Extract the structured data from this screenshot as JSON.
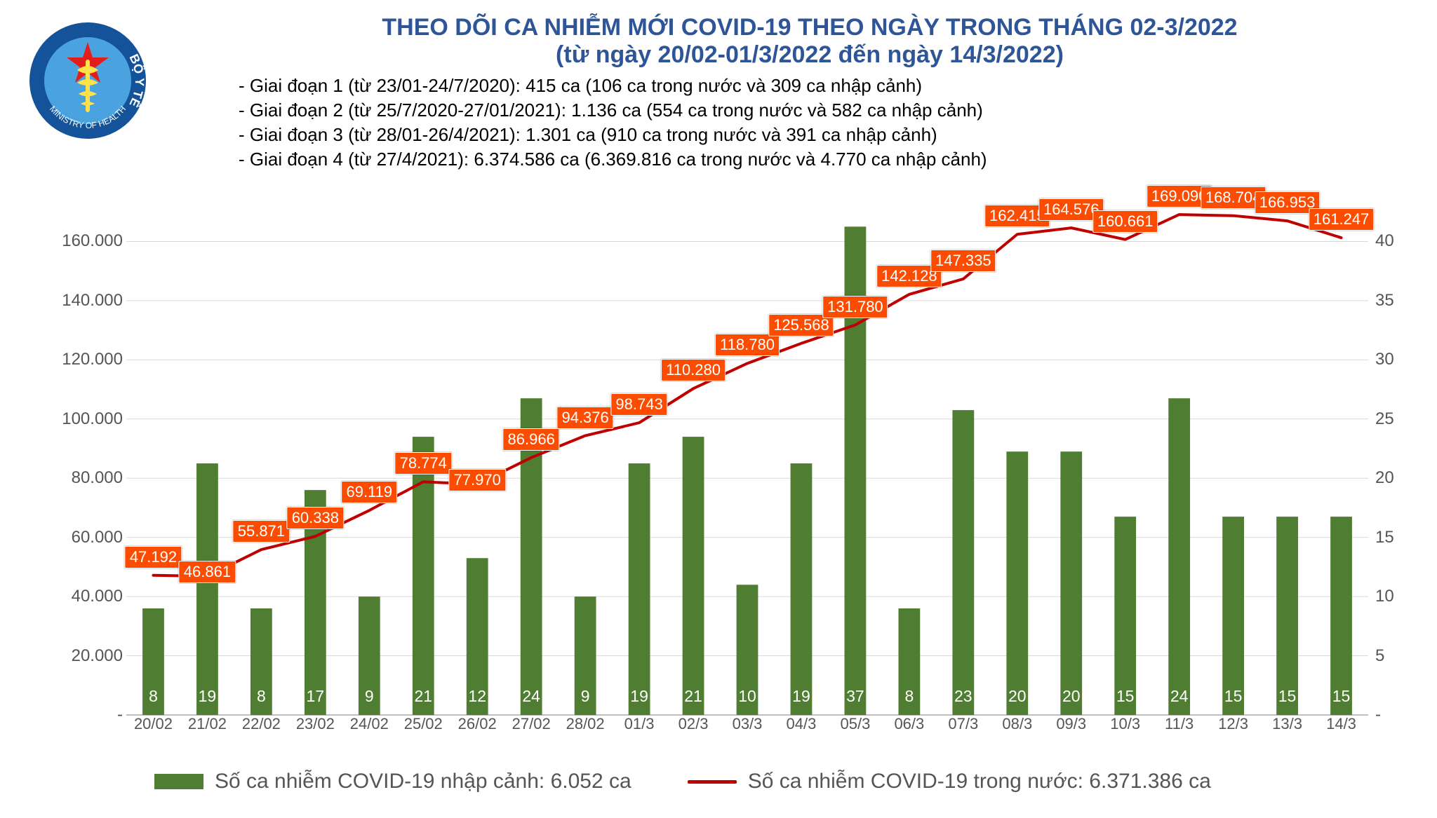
{
  "title": {
    "line1": "THEO DÕI CA NHIỄM MỚI COVID-19 THEO NGÀY TRONG THÁNG 02-3/2022",
    "line2": "(từ ngày 20/02-01/3/2022 đến ngày 14/3/2022)",
    "color": "#2e5597",
    "fontsize": 34,
    "font_family": "Arial"
  },
  "logo": {
    "outer_text_top": "BỘ Y TẾ",
    "outer_text_bottom": "MINISTRY OF HEALTH",
    "ring_color": "#14529a",
    "star_color": "#e31d1a",
    "staff_color": "#ffe24a",
    "bg_color": "#4aa3df"
  },
  "periods": [
    "- Giai đoạn 1 (từ 23/01-24/7/2020): 415 ca (106 ca trong nước và 309 ca nhập cảnh)",
    "- Giai đoạn 2 (từ 25/7/2020-27/01/2021): 1.136 ca (554 ca trong nước và 582 ca nhập cảnh)",
    "- Giai đoạn 3 (từ 28/01-26/4/2021): 1.301 ca (910 ca trong nước và 391 ca nhập cảnh)",
    "- Giai đoạn 4 (từ 27/4/2021): 6.374.586 ca (6.369.816 ca trong nước và 4.770 ca nhập cảnh)"
  ],
  "period_style": {
    "fontsize": 26,
    "color": "#000000",
    "font_family": "Arial"
  },
  "chart": {
    "type": "combo_bar_line_dual_axis",
    "plot_background": "#ffffff",
    "grid_color": "#d9d9d9",
    "axis_line_color": "#bfbfbf",
    "axis_label_color": "#555555",
    "axis_fontsize": 22,
    "bar_color": "#4f7d32",
    "bar_value_color": "#ffffff",
    "line_color": "#c00000",
    "line_width": 4,
    "line_label_bg": "#fc4c02",
    "line_label_text_color": "#ffffff",
    "line_label_border": "#ffffff",
    "bar_width_ratio": 0.4,
    "categories": [
      "20/02",
      "21/02",
      "22/02",
      "23/02",
      "24/02",
      "25/02",
      "26/02",
      "27/02",
      "28/02",
      "01/3",
      "02/3",
      "03/3",
      "04/3",
      "05/3",
      "06/3",
      "07/3",
      "08/3",
      "09/3",
      "10/3",
      "11/3",
      "12/3",
      "13/3",
      "14/3"
    ],
    "bar_values": [
      36000,
      85000,
      36000,
      76000,
      40000,
      94000,
      53000,
      107000,
      40000,
      85000,
      94000,
      44000,
      85000,
      165000,
      36000,
      103000,
      89000,
      89000,
      67000,
      107000,
      67000,
      67000,
      67000
    ],
    "bar_display_values": [
      "8",
      "19",
      "8",
      "17",
      "9",
      "21",
      "12",
      "24",
      "9",
      "19",
      "21",
      "10",
      "19",
      "37",
      "8",
      "23",
      "20",
      "20",
      "15",
      "24",
      "15",
      "15",
      "15"
    ],
    "line_values": [
      47192,
      46861,
      55871,
      60338,
      69119,
      78774,
      77970,
      86966,
      94376,
      98743,
      110280,
      118780,
      125568,
      131780,
      142128,
      147335,
      162415,
      164576,
      160661,
      169090,
      168704,
      166953,
      161247
    ],
    "line_display_values": [
      "47.192",
      "46.861",
      "55.871",
      "60.338",
      "69.119",
      "78.774",
      "77.970",
      "86.966",
      "94.376",
      "98.743",
      "110.280",
      "118.780",
      "125.568",
      "131.780",
      "142.128",
      "147.335",
      "162.415",
      "164.576",
      "160.661",
      "169.090",
      "168.704",
      "166.953",
      "161.247"
    ],
    "y_left": {
      "min": 0,
      "max": 180000,
      "step": 20000,
      "tick_labels": [
        "-",
        "20.000",
        "40.000",
        "60.000",
        "80.000",
        "100.000",
        "120.000",
        "140.000",
        "160.000"
      ]
    },
    "y_right": {
      "min": 0,
      "max": 45,
      "step": 5,
      "tick_labels": [
        "-",
        "5",
        "10",
        "15",
        "20",
        "25",
        "30",
        "35",
        "40"
      ]
    },
    "line_label_nudge": {
      "1": "down",
      "6": "down"
    }
  },
  "legend": {
    "bar_label": "Số ca nhiễm COVID-19 nhập cảnh: 6.052 ca",
    "line_label": "Số ca nhiễm COVID-19 trong nước: 6.371.386 ca",
    "font_family": "Arial",
    "fontsize": 30,
    "text_color": "#555555"
  }
}
